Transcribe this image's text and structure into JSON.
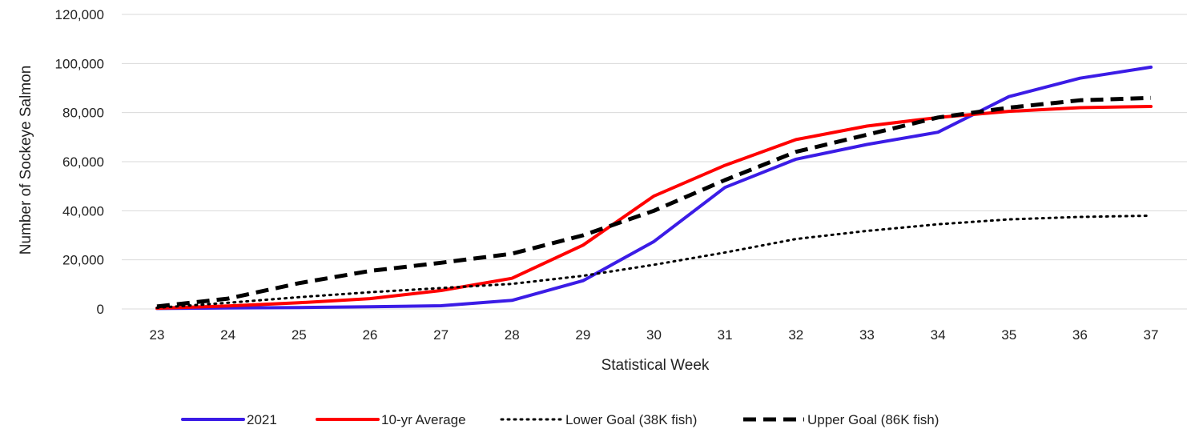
{
  "chart_data": {
    "type": "line",
    "title": "",
    "xlabel": "Statistical Week",
    "ylabel": "Number of Sockeye Salmon",
    "x": [
      23,
      24,
      25,
      26,
      27,
      28,
      29,
      30,
      31,
      32,
      33,
      34,
      35,
      36,
      37
    ],
    "xlim": [
      23,
      37
    ],
    "ylim": [
      0,
      120000
    ],
    "yticks": [
      0,
      20000,
      40000,
      60000,
      80000,
      100000,
      120000
    ],
    "ytick_labels": [
      "0",
      "20,000",
      "40,000",
      "60,000",
      "80,000",
      "100,000",
      "120,000"
    ],
    "xtick_labels": [
      "23",
      "24",
      "25",
      "26",
      "27",
      "28",
      "29",
      "30",
      "31",
      "32",
      "33",
      "34",
      "35",
      "36",
      "37"
    ],
    "grid": "horizontal",
    "legend_position": "bottom",
    "series": [
      {
        "name": "2021",
        "color": "#3b1ce6",
        "dash": "solid",
        "values": [
          200,
          400,
          600,
          900,
          1300,
          3500,
          11500,
          27500,
          49500,
          61000,
          67000,
          72000,
          86500,
          94000,
          98500
        ]
      },
      {
        "name": "10-yr Average",
        "color": "#ff0000",
        "dash": "solid",
        "values": [
          300,
          1200,
          2500,
          4200,
          7500,
          12500,
          26000,
          46000,
          58500,
          69000,
          74500,
          78000,
          80500,
          82000,
          82500
        ]
      },
      {
        "name": "Lower Goal (38K fish)",
        "color": "#000000",
        "dash": "dotted",
        "values": [
          500,
          2500,
          4800,
          6800,
          8500,
          10200,
          13500,
          18000,
          23000,
          28500,
          31800,
          34500,
          36500,
          37500,
          38000
        ]
      },
      {
        "name": "Upper Goal (86K fish)",
        "color": "#000000",
        "dash": "dashed",
        "values": [
          1000,
          4200,
          10500,
          15500,
          18800,
          22500,
          30000,
          40000,
          52500,
          64000,
          71000,
          78000,
          82000,
          85000,
          86000
        ]
      }
    ]
  }
}
